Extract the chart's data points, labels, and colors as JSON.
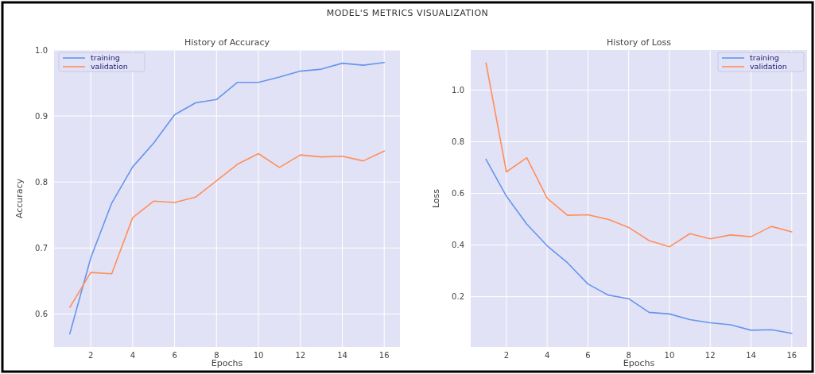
{
  "chart_data": [
    {
      "type": "line",
      "title": "History of Accuracy",
      "xlabel": "Epochs",
      "ylabel": "Accuracy",
      "annotations": [
        "MODEL'S METRICS VISUALIZATION"
      ],
      "x": [
        1,
        2,
        3,
        4,
        5,
        6,
        7,
        8,
        9,
        10,
        11,
        12,
        13,
        14,
        15,
        16
      ],
      "series": [
        {
          "name": "training",
          "color": "#6495ed",
          "values": [
            0.57,
            0.685,
            0.768,
            0.823,
            0.859,
            0.902,
            0.92,
            0.925,
            0.951,
            0.951,
            0.959,
            0.968,
            0.971,
            0.98,
            0.977,
            0.981
          ]
        },
        {
          "name": "validation",
          "color": "#ff8f5a",
          "values": [
            0.61,
            0.663,
            0.661,
            0.746,
            0.771,
            0.769,
            0.777,
            0.802,
            0.827,
            0.843,
            0.822,
            0.841,
            0.838,
            0.839,
            0.832,
            0.847
          ]
        }
      ],
      "xlim": [
        0.25,
        16.75
      ],
      "xticks": [
        2,
        4,
        6,
        8,
        10,
        12,
        14,
        16
      ],
      "ylim": [
        0.55,
        1.0
      ],
      "yticks": [
        0.6,
        0.7,
        0.8,
        0.9,
        {
          "value": 1,
          "label": "1.0"
        }
      ],
      "grid": true,
      "legend": "top left"
    },
    {
      "type": "line",
      "title": "History of Loss",
      "xlabel": "Epochs",
      "ylabel": "Loss",
      "x": [
        1,
        2,
        3,
        4,
        5,
        6,
        7,
        8,
        9,
        10,
        11,
        12,
        13,
        14,
        15,
        16
      ],
      "series": [
        {
          "name": "training",
          "color": "#6495ed",
          "values": [
            0.732,
            0.589,
            0.481,
            0.397,
            0.331,
            0.249,
            0.206,
            0.192,
            0.139,
            0.133,
            0.111,
            0.099,
            0.091,
            0.07,
            0.072,
            0.058
          ]
        },
        {
          "name": "validation",
          "color": "#ff8f5a",
          "values": [
            1.105,
            0.683,
            0.738,
            0.581,
            0.515,
            0.517,
            0.499,
            0.468,
            0.417,
            0.393,
            0.444,
            0.424,
            0.439,
            0.432,
            0.472,
            0.451
          ]
        }
      ],
      "xlim": [
        0.25,
        16.75
      ],
      "xticks": [
        2,
        4,
        6,
        8,
        10,
        12,
        14,
        16
      ],
      "ylim": [
        0.005,
        1.155
      ],
      "yticks": [
        0.2,
        0.4,
        0.6,
        0.8,
        {
          "value": 1,
          "label": "1.0"
        }
      ],
      "grid": true,
      "legend": "top right"
    }
  ]
}
